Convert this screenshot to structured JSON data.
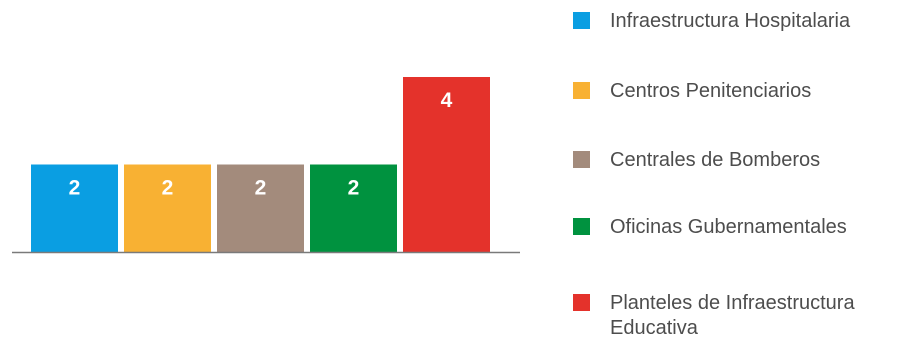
{
  "chart_data": {
    "type": "bar",
    "categories": [
      "Infraestructura Hospitalaria",
      "Centros Penitenciarios",
      "Centrales de Bomberos",
      "Oficinas Gubernamentales",
      "Planteles de Infraestructura Educativa"
    ],
    "values": [
      2,
      2,
      2,
      2,
      4
    ],
    "data_labels": [
      "2",
      "2",
      "2",
      "2",
      "4"
    ],
    "colors": [
      "#0a9ee2",
      "#f8b133",
      "#a38b7c",
      "#00923f",
      "#e4322b"
    ],
    "ylim": [
      0,
      4
    ],
    "grid": false,
    "legend_position": "right",
    "title": "",
    "xlabel": "",
    "ylabel": ""
  },
  "legend": {
    "items": [
      {
        "label": "Infraestructura Hospitalaria",
        "color": "#0a9ee2"
      },
      {
        "label": "Centros Penitenciarios",
        "color": "#f8b133"
      },
      {
        "label": "Centrales de Bomberos",
        "color": "#a38b7c"
      },
      {
        "label": "Oficinas Gubernamentales",
        "color": "#00923f"
      },
      {
        "label": "Planteles de Infraestructura Educativa",
        "color": "#e4322b"
      }
    ]
  },
  "axis_color": "#7a7a7a"
}
